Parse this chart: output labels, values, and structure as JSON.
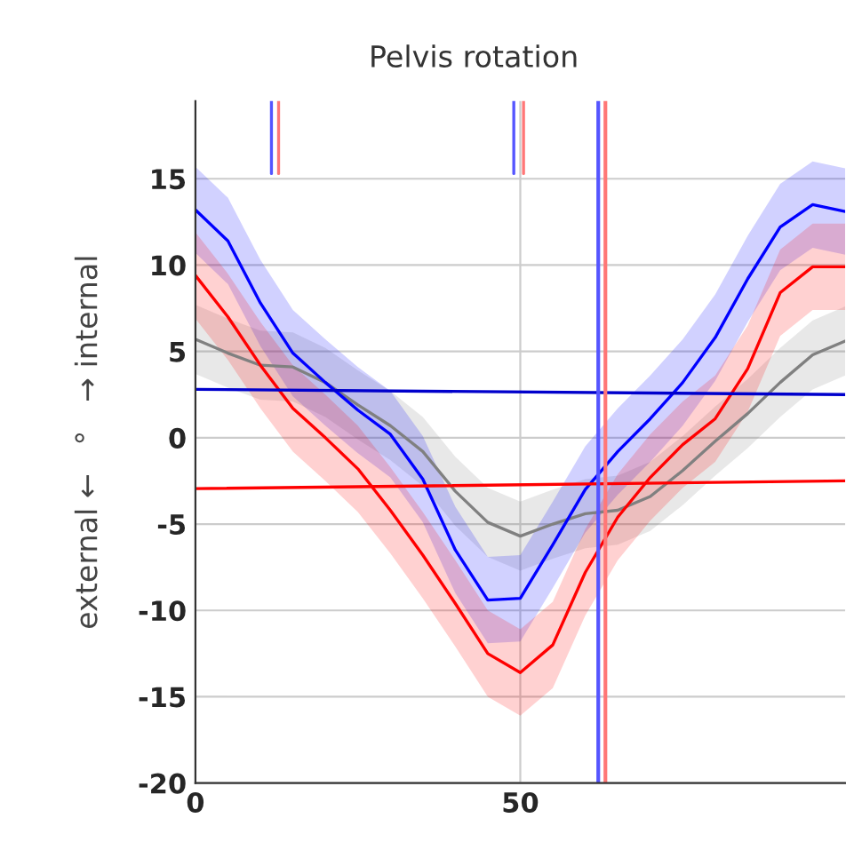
{
  "chart_data": {
    "type": "line",
    "title": "Pelvis rotation",
    "ylabel": "external ←   °   → internal",
    "x": [
      0,
      5,
      10,
      15,
      20,
      25,
      30,
      35,
      40,
      45,
      50,
      55,
      60,
      65,
      70,
      75,
      80,
      85,
      90,
      95,
      100
    ],
    "xlim": [
      0,
      100
    ],
    "xticks": [
      0,
      50
    ],
    "ylim": [
      -20,
      19.5
    ],
    "yticks": [
      -20,
      -15,
      -10,
      -5,
      0,
      5,
      10,
      15
    ],
    "grid": true,
    "series": [
      {
        "color": "#808080",
        "values": [
          5.7,
          4.9,
          4.2,
          4.1,
          3.2,
          1.9,
          0.7,
          -0.8,
          -3.1,
          -4.9,
          -5.7,
          -5,
          -4.4,
          -4.2,
          -3.4,
          -1.9,
          -0.2,
          1.4,
          3.2,
          4.8,
          5.6
        ],
        "lower": [
          3.7,
          2.9,
          2.2,
          2.1,
          1.2,
          -0.1,
          -1.3,
          -2.8,
          -5.1,
          -6.9,
          -7.7,
          -7,
          -6.4,
          -6.2,
          -5.4,
          -3.9,
          -2.2,
          -0.6,
          1.2,
          2.8,
          3.6
        ],
        "upper": [
          7.7,
          6.9,
          6.2,
          6.1,
          5.2,
          3.9,
          2.7,
          1.2,
          -1.1,
          -2.9,
          -3.7,
          -3,
          -2.4,
          -2.2,
          -1.4,
          0.1,
          1.8,
          3.4,
          5.2,
          6.8,
          7.6
        ]
      },
      {
        "color": "#0000ff",
        "values": [
          13.2,
          11.4,
          7.8,
          4.9,
          3.2,
          1.6,
          0.2,
          -2.4,
          -6.5,
          -9.4,
          -9.3,
          -6.2,
          -3,
          -0.8,
          1.1,
          3.2,
          5.8,
          9.2,
          12.2,
          13.5,
          13.1
        ],
        "lower": [
          10.7,
          8.9,
          5.3,
          2.4,
          0.7,
          -0.9,
          -2.3,
          -4.9,
          -9,
          -11.9,
          -11.8,
          -8.7,
          -5.5,
          -3.3,
          -1.4,
          0.7,
          3.3,
          6.7,
          9.7,
          11,
          10.6
        ],
        "upper": [
          15.7,
          13.9,
          10.3,
          7.4,
          5.7,
          4.1,
          2.7,
          0.1,
          -4,
          -6.9,
          -6.8,
          -3.7,
          -0.5,
          1.7,
          3.6,
          5.7,
          8.3,
          11.7,
          14.7,
          16,
          15.6
        ]
      },
      {
        "color": "#ff0000",
        "values": [
          9.4,
          7,
          4.2,
          1.7,
          0,
          -1.8,
          -4.2,
          -6.8,
          -9.6,
          -12.5,
          -13.6,
          -12,
          -7.8,
          -4.6,
          -2.3,
          -0.4,
          1.1,
          4,
          8.4,
          9.9,
          9.9
        ],
        "lower": [
          6.9,
          4.5,
          1.7,
          -0.8,
          -2.5,
          -4.3,
          -6.7,
          -9.3,
          -12.1,
          -15,
          -16.1,
          -14.5,
          -10.3,
          -7.1,
          -4.8,
          -2.9,
          -1.4,
          1.5,
          5.9,
          7.4,
          7.4
        ],
        "upper": [
          11.9,
          9.5,
          6.7,
          4.2,
          2.5,
          0.7,
          -1.7,
          -4.3,
          -7.1,
          -10,
          -11.1,
          -9.5,
          -5.3,
          -2.1,
          0.2,
          2.1,
          3.6,
          6.5,
          10.9,
          12.4,
          12.4
        ]
      },
      {
        "color": "#0000cc",
        "x": [
          0,
          100
        ],
        "values": [
          2.8,
          2.5
        ]
      },
      {
        "color": "#ff0000",
        "x": [
          0,
          100
        ],
        "values": [
          -2.95,
          -2.5
        ]
      },
      {
        "color": "#5555ff",
        "x": [
          11.7,
          11.7
        ],
        "values": [
          15.3,
          19.5
        ]
      },
      {
        "color": "#ff7777",
        "x": [
          12.8,
          12.8
        ],
        "values": [
          15.3,
          19.5
        ]
      },
      {
        "color": "#5555ff",
        "x": [
          49,
          49
        ],
        "values": [
          15.3,
          19.5
        ]
      },
      {
        "color": "#ff7777",
        "x": [
          50.5,
          50.5
        ],
        "values": [
          15.3,
          19.5
        ]
      }
    ],
    "ref_lines": [
      {
        "axis": "x",
        "value": 62,
        "color": "#5555ff"
      },
      {
        "axis": "x",
        "value": 63.1,
        "color": "#ff7777"
      }
    ]
  }
}
